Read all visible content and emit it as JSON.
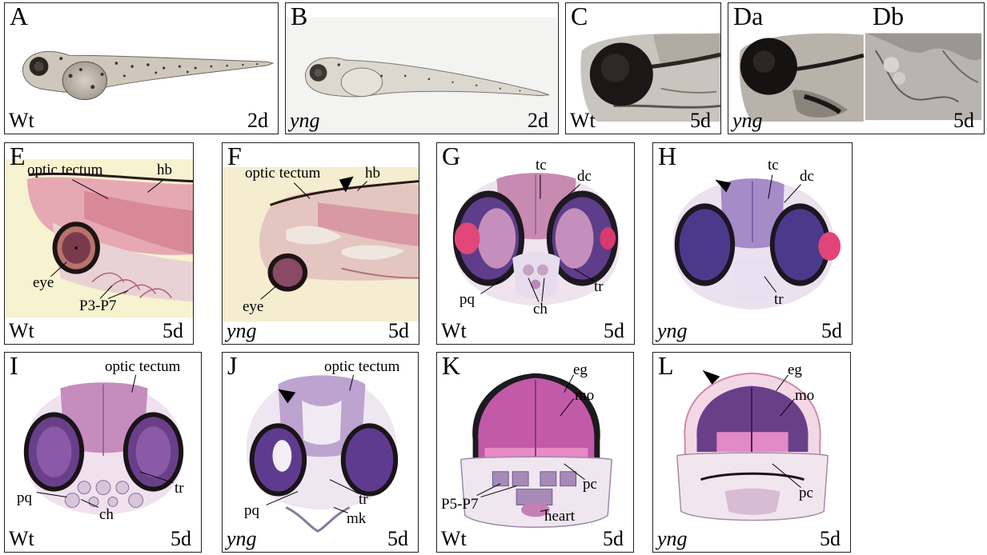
{
  "panels": {
    "A": {
      "label": "A",
      "genotype": "Wt",
      "age": "2d"
    },
    "B": {
      "label": "B",
      "genotype": "yng",
      "age": "2d"
    },
    "C": {
      "label": "C",
      "genotype": "Wt",
      "age": "5d"
    },
    "D": {
      "label_a": "Da",
      "label_b": "Db",
      "genotype": "yng",
      "age": "5d"
    },
    "E": {
      "label": "E",
      "genotype": "Wt",
      "age": "5d",
      "annotations": {
        "optic_tectum": "optic tectum",
        "hb": "hb",
        "eye": "eye",
        "pharyngeal": "P3-P7"
      }
    },
    "F": {
      "label": "F",
      "genotype": "yng",
      "age": "5d",
      "annotations": {
        "optic_tectum": "optic tectum",
        "hb": "hb",
        "eye": "eye"
      }
    },
    "G": {
      "label": "G",
      "genotype": "Wt",
      "age": "5d",
      "annotations": {
        "tc": "tc",
        "dc": "dc",
        "pq": "pq",
        "ch": "ch",
        "tr": "tr"
      }
    },
    "H": {
      "label": "H",
      "genotype": "yng",
      "age": "5d",
      "annotations": {
        "tc": "tc",
        "dc": "dc",
        "tr": "tr"
      }
    },
    "I": {
      "label": "I",
      "genotype": "Wt",
      "age": "5d",
      "annotations": {
        "optic_tectum": "optic tectum",
        "pq": "pq",
        "ch": "ch",
        "tr": "tr"
      }
    },
    "J": {
      "label": "J",
      "genotype": "yng",
      "age": "5d",
      "annotations": {
        "optic_tectum": "optic tectum",
        "pq": "pq",
        "tr": "tr",
        "mk": "mk"
      }
    },
    "K": {
      "label": "K",
      "genotype": "Wt",
      "age": "5d",
      "annotations": {
        "eg": "eg",
        "mo": "mo",
        "pc": "pc",
        "pharyngeal": "P5-P7",
        "heart": "heart"
      }
    },
    "L": {
      "label": "L",
      "genotype": "yng",
      "age": "5d",
      "annotations": {
        "eg": "eg",
        "mo": "mo",
        "pc": "pc"
      }
    }
  }
}
